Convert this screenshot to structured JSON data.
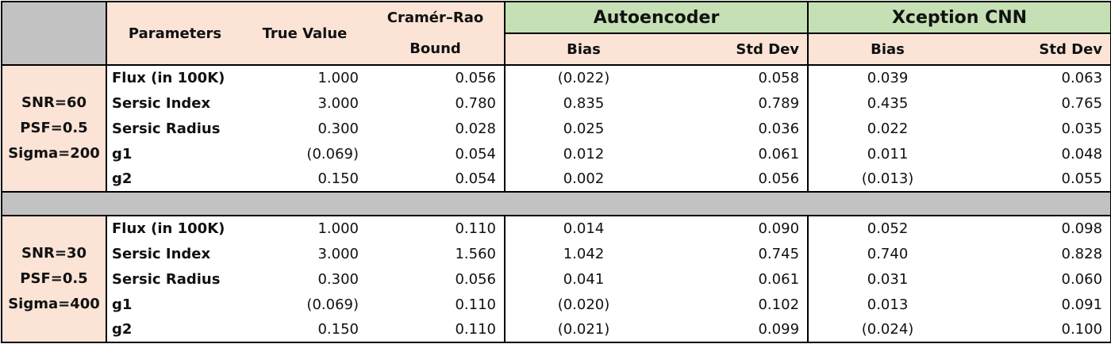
{
  "header": {
    "parameters": "Parameters",
    "true_value": "True Value",
    "cramer_rao_line1": "Cramér–Rao",
    "cramer_rao_line2": "Bound",
    "group1": "Autoencoder",
    "group2": "Xception CNN",
    "bias": "Bias",
    "std_dev": "Std Dev"
  },
  "blocks": [
    {
      "conditions": [
        "SNR=60",
        "PSF=0.5",
        "Sigma=200"
      ],
      "rows": [
        {
          "param": "Flux (in 100K)",
          "true": "1.000",
          "crb": "0.056",
          "ae_bias": "(0.022)",
          "ae_std": "0.058",
          "cnn_bias": "0.039",
          "cnn_std": "0.063"
        },
        {
          "param": "Sersic Index",
          "true": "3.000",
          "crb": "0.780",
          "ae_bias": "0.835",
          "ae_std": "0.789",
          "cnn_bias": "0.435",
          "cnn_std": "0.765"
        },
        {
          "param": "Sersic Radius",
          "true": "0.300",
          "crb": "0.028",
          "ae_bias": "0.025",
          "ae_std": "0.036",
          "cnn_bias": "0.022",
          "cnn_std": "0.035"
        },
        {
          "param": "g1",
          "true": "(0.069)",
          "crb": "0.054",
          "ae_bias": "0.012",
          "ae_std": "0.061",
          "cnn_bias": "0.011",
          "cnn_std": "0.048"
        },
        {
          "param": "g2",
          "true": "0.150",
          "crb": "0.054",
          "ae_bias": "0.002",
          "ae_std": "0.056",
          "cnn_bias": "(0.013)",
          "cnn_std": "0.055"
        }
      ]
    },
    {
      "conditions": [
        "SNR=30",
        "PSF=0.5",
        "Sigma=400"
      ],
      "rows": [
        {
          "param": "Flux (in 100K)",
          "true": "1.000",
          "crb": "0.110",
          "ae_bias": "0.014",
          "ae_std": "0.090",
          "cnn_bias": "0.052",
          "cnn_std": "0.098"
        },
        {
          "param": "Sersic Index",
          "true": "3.000",
          "crb": "1.560",
          "ae_bias": "1.042",
          "ae_std": "0.745",
          "cnn_bias": "0.740",
          "cnn_std": "0.828"
        },
        {
          "param": "Sersic Radius",
          "true": "0.300",
          "crb": "0.056",
          "ae_bias": "0.041",
          "ae_std": "0.061",
          "cnn_bias": "0.031",
          "cnn_std": "0.060"
        },
        {
          "param": "g1",
          "true": "(0.069)",
          "crb": "0.110",
          "ae_bias": "(0.020)",
          "ae_std": "0.102",
          "cnn_bias": "0.013",
          "cnn_std": "0.091"
        },
        {
          "param": "g2",
          "true": "0.150",
          "crb": "0.110",
          "ae_bias": "(0.021)",
          "ae_std": "0.099",
          "cnn_bias": "(0.024)",
          "cnn_std": "0.100"
        }
      ]
    }
  ]
}
